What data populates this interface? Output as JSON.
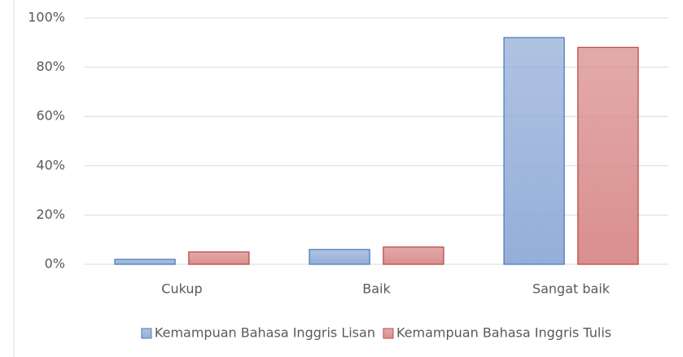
{
  "chart_data": {
    "type": "bar",
    "categories": [
      "Cukup",
      "Baik",
      "Sangat baik"
    ],
    "series": [
      {
        "name": "Kemampuan Bahasa Inggris Lisan",
        "color": "#95aed9",
        "values": [
          2,
          6,
          92
        ]
      },
      {
        "name": "Kemampuan Bahasa Inggris Tulis",
        "color": "#d98f8e",
        "values": [
          5,
          7,
          88
        ]
      }
    ],
    "ylim": [
      0,
      100
    ],
    "yticks": [
      {
        "value": 0,
        "label": "0%"
      },
      {
        "value": 20,
        "label": "20%"
      },
      {
        "value": 40,
        "label": "40%"
      },
      {
        "value": 60,
        "label": "60%"
      },
      {
        "value": 80,
        "label": "80%"
      },
      {
        "value": 100,
        "label": "100%"
      }
    ],
    "grid": true,
    "legend": "bottom"
  }
}
